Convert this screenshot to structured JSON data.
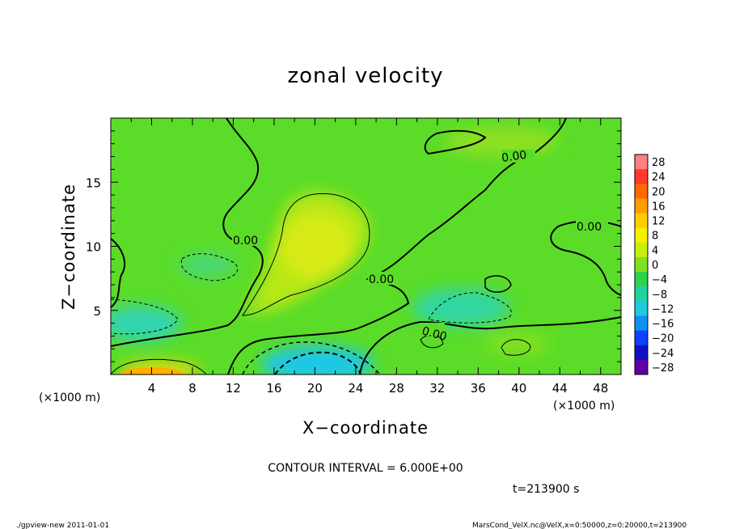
{
  "chart_data": {
    "type": "contour",
    "title": "zonal velocity",
    "xlabel": "X−coordinate",
    "ylabel": "Z−coordinate",
    "x_unit": "(×1000 m)",
    "y_unit": "(×1000 m)",
    "xlim": [
      0,
      50
    ],
    "ylim": [
      0,
      20
    ],
    "x_ticks": [
      "4",
      "8",
      "12",
      "16",
      "20",
      "24",
      "28",
      "32",
      "36",
      "40",
      "44",
      "48"
    ],
    "x_tick_values": [
      4,
      8,
      12,
      16,
      20,
      24,
      28,
      32,
      36,
      40,
      44,
      48
    ],
    "y_ticks": [
      "5",
      "10",
      "15"
    ],
    "y_tick_values": [
      5,
      10,
      15
    ],
    "contour_interval_text": "CONTOUR INTERVAL = 6.000E+00",
    "contour_labels": [
      "0.00",
      "0.00",
      "0.00",
      "0.00",
      "0.00"
    ],
    "time_text": "t=213900 s",
    "footer_left": "./gpview-new   2011-01-01",
    "footer_right": "MarsCond_VelX.nc@VelX,x=0:50000,z=0:20000,t=213900",
    "colorbar": {
      "labels": [
        "28",
        "24",
        "20",
        "16",
        "12",
        "8",
        "4",
        "0",
        "−4",
        "−8",
        "−12",
        "−16",
        "−20",
        "−24",
        "−28"
      ],
      "levels": [
        28,
        24,
        20,
        16,
        12,
        8,
        4,
        0,
        -4,
        -8,
        -12,
        -16,
        -20,
        -24,
        -28
      ],
      "colors": [
        "#ff8080",
        "#ff3b2a",
        "#ff6a00",
        "#ff9c00",
        "#ffcc00",
        "#f5f000",
        "#c8ee10",
        "#7fe020",
        "#30d24a",
        "#20d2a0",
        "#20c8e0",
        "#1090f0",
        "#1040ff",
        "#1010c0",
        "#6000a0"
      ]
    },
    "features": [
      {
        "kind": "positive-max",
        "x": 20,
        "z": 9.5,
        "level": 8
      },
      {
        "kind": "negative-min",
        "x": 19,
        "z": 1,
        "level": -10
      },
      {
        "kind": "positive-max",
        "x": 5,
        "z": 0.5,
        "level": 14
      },
      {
        "kind": "negative-min",
        "x": 3,
        "z": 4.3,
        "level": -7
      },
      {
        "kind": "negative-min",
        "x": 34,
        "z": 5,
        "level": -5
      }
    ]
  }
}
